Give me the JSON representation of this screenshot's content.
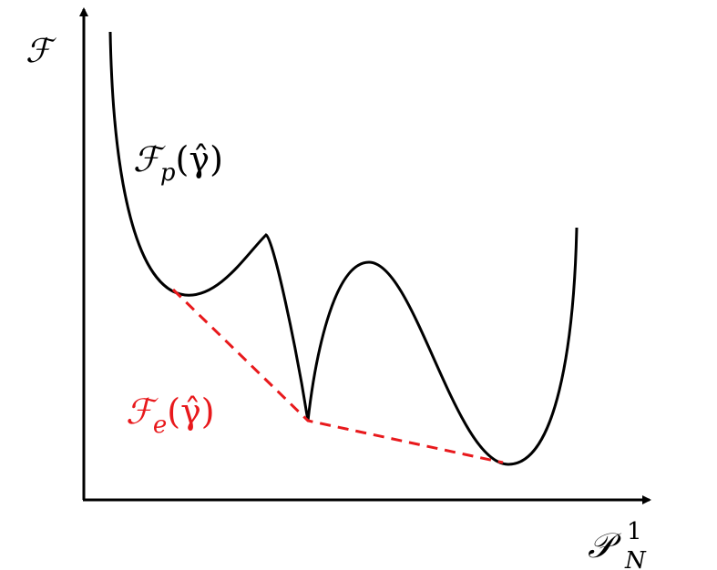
{
  "axes": {
    "y_label": "ℱ",
    "x_label": {
      "base": "𝒫",
      "sub": "N",
      "sup": "1"
    }
  },
  "curves": [
    {
      "base": "ℱ",
      "sub": "p",
      "arg": "(γ̂)"
    },
    {
      "base": "ℱ",
      "sub": "e",
      "arg": "(γ̂)"
    }
  ]
}
